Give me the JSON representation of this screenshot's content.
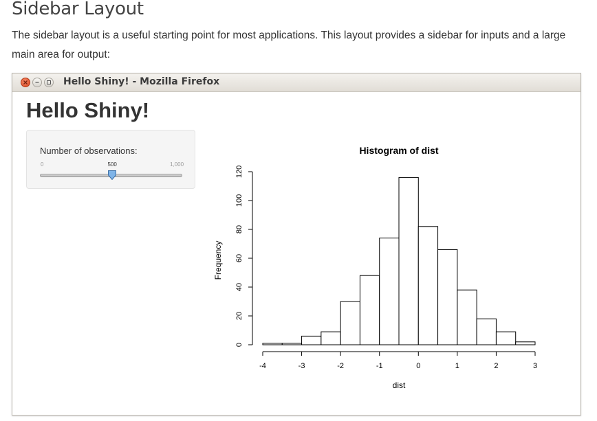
{
  "doc": {
    "title": "Sidebar Layout",
    "paragraph": "The sidebar layout is a useful starting point for most applications. This layout provides a sidebar for inputs and a large main area for output:"
  },
  "window": {
    "title": "Hello Shiny! - Mozilla Firefox"
  },
  "app": {
    "title": "Hello Shiny!",
    "slider": {
      "label": "Number of observations:",
      "min_label": "0",
      "value_label": "500",
      "max_label": "1,000",
      "min": 0,
      "max": 1000,
      "value": 500
    }
  },
  "chart_data": {
    "type": "bar",
    "title": "Histogram of dist",
    "xlabel": "dist",
    "ylabel": "Frequency",
    "bin_edges": [
      -4,
      -3.5,
      -3,
      -2.5,
      -2,
      -1.5,
      -1,
      -0.5,
      0,
      0.5,
      1,
      1.5,
      2,
      2.5,
      3
    ],
    "values": [
      1,
      1,
      6,
      9,
      30,
      48,
      74,
      116,
      82,
      66,
      38,
      18,
      9,
      2
    ],
    "xlim": [
      -4,
      3
    ],
    "ylim": [
      0,
      120
    ],
    "x_ticks": [
      -4,
      -3,
      -2,
      -1,
      0,
      1,
      2,
      3
    ],
    "y_ticks": [
      0,
      20,
      40,
      60,
      80,
      100,
      120
    ],
    "grid": false
  }
}
